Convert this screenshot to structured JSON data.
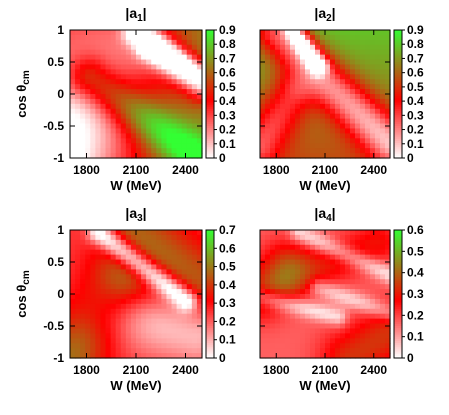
{
  "chart_data": [
    {
      "type": "heatmap",
      "title": "|a",
      "title_sub": "1",
      "title_end": "|",
      "xlabel": "W (MeV)",
      "ylabel": "cos θ",
      "ylabel_sub": "cm",
      "xlim": [
        1700,
        2500
      ],
      "ylim": [
        -1,
        1
      ],
      "xticks": [
        1800,
        2100,
        2400
      ],
      "yticks": [
        1,
        0.5,
        0,
        -0.5,
        -1
      ],
      "ytick_labels": [
        "1",
        "0.5",
        "0",
        "-0.5",
        "-1"
      ],
      "colorbar": {
        "range": [
          0,
          0.9
        ],
        "ticks": [
          0,
          0.1,
          0.2,
          0.3,
          0.4,
          0.5,
          0.6,
          0.7,
          0.8,
          0.9
        ],
        "tick_labels": [
          "0",
          "0.1",
          "0.2",
          "0.3",
          "0.4",
          "0.5",
          "0.6",
          "0.7",
          "0.8",
          "0.9"
        ],
        "colors": [
          "#ffffff",
          "#ff0000",
          "#33ff33"
        ]
      }
    },
    {
      "type": "heatmap",
      "title": "|a",
      "title_sub": "2",
      "title_end": "|",
      "xlabel": "W (MeV)",
      "ylabel": "",
      "ylabel_sub": "",
      "xlim": [
        1700,
        2500
      ],
      "ylim": [
        -1,
        1
      ],
      "xticks": [
        1800,
        2100,
        2400
      ],
      "yticks": [
        1,
        0.5,
        0,
        -0.5,
        -1
      ],
      "ytick_labels": [
        "",
        "",
        "",
        "",
        ""
      ],
      "colorbar": {
        "range": [
          0,
          0.9
        ],
        "ticks": [
          0,
          0.1,
          0.2,
          0.3,
          0.4,
          0.5,
          0.6,
          0.7,
          0.8,
          0.9
        ],
        "tick_labels": [
          "0",
          "0.1",
          "0.2",
          "0.3",
          "0.4",
          "0.5",
          "0.6",
          "0.7",
          "0.8",
          "0.9"
        ],
        "colors": [
          "#ffffff",
          "#ff0000",
          "#33ff33"
        ]
      }
    },
    {
      "type": "heatmap",
      "title": "|a",
      "title_sub": "3",
      "title_end": "|",
      "xlabel": "W (MeV)",
      "ylabel": "cos θ",
      "ylabel_sub": "cm",
      "xlim": [
        1700,
        2500
      ],
      "ylim": [
        -1,
        1
      ],
      "xticks": [
        1800,
        2100,
        2400
      ],
      "yticks": [
        1,
        0.5,
        0,
        -0.5,
        -1
      ],
      "ytick_labels": [
        "1",
        "0.5",
        "0",
        "-0.5",
        "-1"
      ],
      "colorbar": {
        "range": [
          0,
          0.7
        ],
        "ticks": [
          0,
          0.1,
          0.2,
          0.3,
          0.4,
          0.5,
          0.6,
          0.7
        ],
        "tick_labels": [
          "0",
          "0.1",
          "0.2",
          "0.3",
          "0.4",
          "0.5",
          "0.6",
          "0.7"
        ],
        "colors": [
          "#ffffff",
          "#ff0000",
          "#33ff33"
        ]
      }
    },
    {
      "type": "heatmap",
      "title": "|a",
      "title_sub": "4",
      "title_end": "|",
      "xlabel": "W (MeV)",
      "ylabel": "",
      "ylabel_sub": "",
      "xlim": [
        1700,
        2500
      ],
      "ylim": [
        -1,
        1
      ],
      "xticks": [
        1800,
        2100,
        2400
      ],
      "yticks": [
        1,
        0.5,
        0,
        -0.5,
        -1
      ],
      "ytick_labels": [
        "",
        "",
        "",
        "",
        ""
      ],
      "colorbar": {
        "range": [
          0,
          0.6
        ],
        "ticks": [
          0,
          0.1,
          0.2,
          0.3,
          0.4,
          0.5,
          0.6
        ],
        "tick_labels": [
          "0",
          "0.1",
          "0.2",
          "0.3",
          "0.4",
          "0.5",
          "0.6"
        ],
        "colors": [
          "#ffffff",
          "#ff0000",
          "#33ff33"
        ]
      }
    }
  ]
}
